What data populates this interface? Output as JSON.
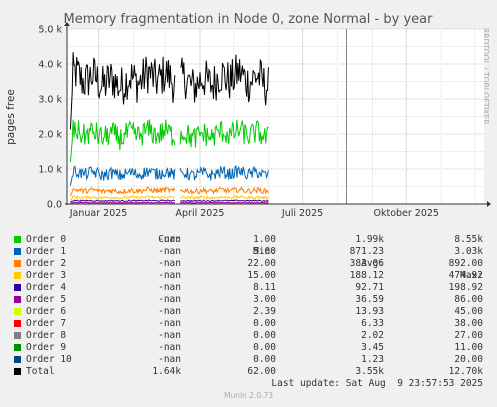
{
  "chart_data": {
    "type": "line",
    "title": "Memory fragmentation in Node 0, zone Normal - by year",
    "ylabel": "pages free",
    "side_text": "RRDTOOL / TOBI OETIKER",
    "ylim": [
      0,
      5000
    ],
    "yticks": [
      {
        "v": 0,
        "label": "0.0"
      },
      {
        "v": 1000,
        "label": "1.0 k"
      },
      {
        "v": 2000,
        "label": "2.0 k"
      },
      {
        "v": 3000,
        "label": "3.0 k"
      },
      {
        "v": 4000,
        "label": "4.0 k"
      },
      {
        "v": 5000,
        "label": "5.0 k"
      }
    ],
    "x_range": [
      "2024-12-04",
      "2025-12-09"
    ],
    "xticks": [
      {
        "date": "2025-01-01",
        "label": "Januar 2025"
      },
      {
        "date": "2025-04-01",
        "label": "April 2025"
      },
      {
        "date": "2025-07-01",
        "label": "Juli 2025"
      },
      {
        "date": "2025-10-01",
        "label": "Oktober 2025"
      }
    ],
    "data_start": "2024-12-07",
    "data_end": "2025-06-01",
    "gaps": [
      [
        "2025-03-10",
        "2025-03-14"
      ]
    ],
    "now_marker": "2025-08-09",
    "series": [
      {
        "name": "Order 0",
        "color": "#00cc00",
        "avg": 1990
      },
      {
        "name": "Order 1",
        "color": "#0066b3",
        "avg": 871.23
      },
      {
        "name": "Order 2",
        "color": "#ff8000",
        "avg": 383.06
      },
      {
        "name": "Order 3",
        "color": "#ffcc00",
        "avg": 188.12
      },
      {
        "name": "Order 4",
        "color": "#330099",
        "avg": 92.71
      },
      {
        "name": "Order 5",
        "color": "#990099",
        "avg": 36.59
      },
      {
        "name": "Order 6",
        "color": "#ccff00",
        "avg": 13.93
      },
      {
        "name": "Order 7",
        "color": "#ff0000",
        "avg": 6.33
      },
      {
        "name": "Order 8",
        "color": "#808080",
        "avg": 2.02
      },
      {
        "name": "Order 9",
        "color": "#008f00",
        "avg": 3.45
      },
      {
        "name": "Order 10",
        "color": "#00487d",
        "avg": 1.23
      },
      {
        "name": "Total",
        "color": "#000000",
        "avg": 3550
      }
    ]
  },
  "legend": {
    "headers": {
      "cur": "Cur:",
      "min": "Min:",
      "avg": "Avg:",
      "max": "Max:"
    },
    "rows": [
      {
        "name": "Order 0",
        "cur": "-nan",
        "min": "1.00",
        "avg": "1.99k",
        "max": "8.55k"
      },
      {
        "name": "Order 1",
        "cur": "-nan",
        "min": "5.00",
        "avg": "871.23",
        "max": "3.03k"
      },
      {
        "name": "Order 2",
        "cur": "-nan",
        "min": "22.00",
        "avg": "383.06",
        "max": "892.00"
      },
      {
        "name": "Order 3",
        "cur": "-nan",
        "min": "15.00",
        "avg": "188.12",
        "max": "474.92"
      },
      {
        "name": "Order 4",
        "cur": "-nan",
        "min": "8.11",
        "avg": "92.71",
        "max": "198.92"
      },
      {
        "name": "Order 5",
        "cur": "-nan",
        "min": "3.00",
        "avg": "36.59",
        "max": "86.00"
      },
      {
        "name": "Order 6",
        "cur": "-nan",
        "min": "2.39",
        "avg": "13.93",
        "max": "45.00"
      },
      {
        "name": "Order 7",
        "cur": "-nan",
        "min": "0.00",
        "avg": "6.33",
        "max": "38.00"
      },
      {
        "name": "Order 8",
        "cur": "-nan",
        "min": "0.00",
        "avg": "2.02",
        "max": "27.00"
      },
      {
        "name": "Order 9",
        "cur": "-nan",
        "min": "0.00",
        "avg": "3.45",
        "max": "11.00"
      },
      {
        "name": "Order 10",
        "cur": "-nan",
        "min": "0.00",
        "avg": "1.23",
        "max": "20.00"
      },
      {
        "name": "Total",
        "cur": "1.64k",
        "min": "62.00",
        "avg": "3.55k",
        "max": "12.70k"
      }
    ]
  },
  "last_update": "Last update: Sat Aug  9 23:57:53 2025",
  "footer": "Munin 2.0.73"
}
